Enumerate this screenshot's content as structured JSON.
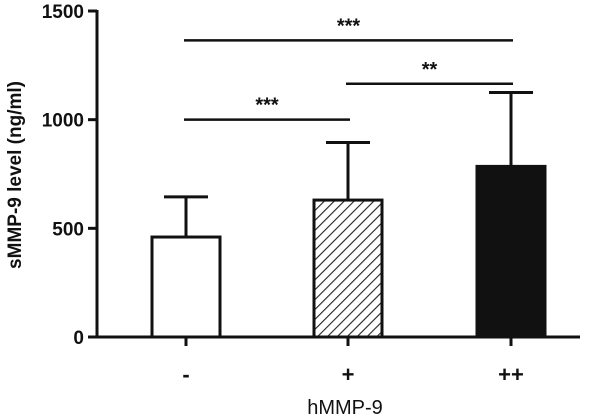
{
  "chart_data": {
    "type": "bar",
    "title": "",
    "xlabel": "hMMP-9",
    "ylabel": "sMMP-9 level (ng/ml)",
    "ylim": [
      0,
      1500
    ],
    "yticks": [
      0,
      500,
      1000,
      1500
    ],
    "categories": [
      "-",
      "+",
      "++"
    ],
    "values": [
      460,
      630,
      785
    ],
    "error_upper": [
      645,
      895,
      1125
    ],
    "bar_fills": [
      "white",
      "hatched",
      "black"
    ],
    "grid": false,
    "significance": [
      {
        "from": 0,
        "to": 1,
        "label": "***",
        "y": 1000
      },
      {
        "from": 1,
        "to": 2,
        "label": "**",
        "y": 1165
      },
      {
        "from": 0,
        "to": 2,
        "label": "***",
        "y": 1365
      }
    ]
  }
}
